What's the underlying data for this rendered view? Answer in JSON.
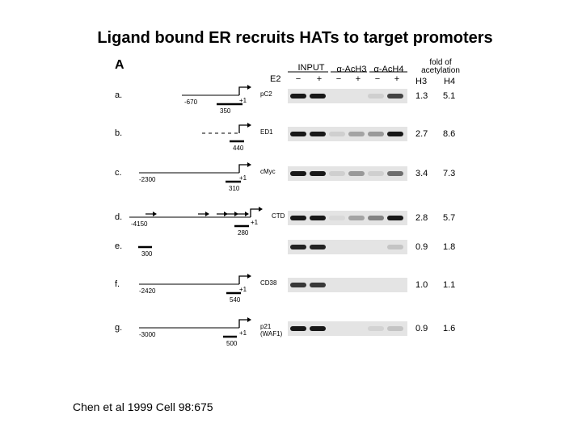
{
  "title": "Ligand bound ER recruits HATs to target promoters",
  "citation": "Chen et al 1999 Cell 98:675",
  "figure": {
    "panel": "A",
    "e2_label": "E2",
    "groups": [
      {
        "label": "INPUT",
        "signs": [
          "−",
          "+"
        ]
      },
      {
        "label": "α-AcH3",
        "signs": [
          "−",
          "+"
        ]
      },
      {
        "label": "α-AcH4",
        "signs": [
          "−",
          "+"
        ]
      }
    ],
    "fold_header": [
      "fold of",
      "acetylation"
    ],
    "h3_label": "H3",
    "h4_label": "H4",
    "rows": [
      {
        "letter": "a.",
        "gene": "pC2",
        "start": "-670",
        "plus1": "+1",
        "fragment": "350",
        "h3": "1.3",
        "h4": "5.1",
        "bands": [
          0.95,
          0.95,
          0,
          0,
          0.1,
          0.75
        ]
      },
      {
        "letter": "b.",
        "gene": "ED1",
        "start": "",
        "plus1": "",
        "fragment": "440",
        "h3": "2.7",
        "h4": "8.6",
        "bands": [
          0.95,
          0.95,
          0.1,
          0.3,
          0.35,
          0.95
        ]
      },
      {
        "letter": "c.",
        "gene": "cMyc",
        "start": "-2300",
        "plus1": "+1",
        "fragment": "310",
        "h3": "3.4",
        "h4": "7.3",
        "bands": [
          0.95,
          0.95,
          0.1,
          0.35,
          0.1,
          0.55
        ]
      },
      {
        "letter": "d.",
        "gene": "CTD",
        "start": "-4150",
        "plus1": "+1",
        "fragment": "280",
        "h3": "2.8",
        "h4": "5.7",
        "bands": [
          0.95,
          0.95,
          0.05,
          0.3,
          0.45,
          0.95
        ]
      },
      {
        "letter": "e.",
        "gene": "",
        "start": "",
        "plus1": "",
        "fragment": "300",
        "h3": "0.9",
        "h4": "1.8",
        "bands": [
          0.9,
          0.9,
          0,
          0,
          0,
          0.15
        ]
      },
      {
        "letter": "f.",
        "gene": "CD38",
        "start": "-2420",
        "plus1": "+1",
        "fragment": "540",
        "h3": "1.0",
        "h4": "1.1",
        "bands": [
          0.8,
          0.8,
          0,
          0,
          0,
          0
        ]
      },
      {
        "letter": "g.",
        "gene": "p21\n(WAF1)",
        "start": "-3000",
        "plus1": "+1",
        "fragment": "500",
        "h3": "0.9",
        "h4": "1.6",
        "bands": [
          0.95,
          0.95,
          0,
          0,
          0.08,
          0.15
        ]
      }
    ]
  }
}
